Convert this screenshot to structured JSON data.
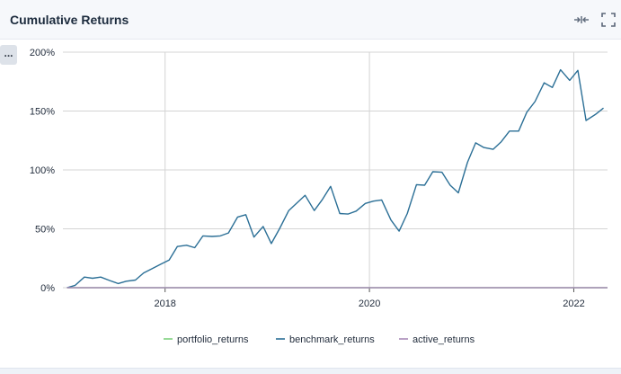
{
  "panel": {
    "title": "Cumulative Returns",
    "more_label": "...",
    "icons": [
      "collapse-arrows-icon",
      "fullscreen-icon"
    ]
  },
  "colors": {
    "portfolio": "#7fd17f",
    "benchmark": "#2b6f96",
    "active": "#a88ab8",
    "grid": "#d4d4d4"
  },
  "chart_data": {
    "type": "line",
    "title": "Cumulative Returns",
    "xlabel": "",
    "ylabel": "",
    "ylim": [
      0,
      200
    ],
    "yticks": [
      {
        "value": 0,
        "label": "0%"
      },
      {
        "value": 50,
        "label": "50%"
      },
      {
        "value": 100,
        "label": "100%"
      },
      {
        "value": 150,
        "label": "150%"
      },
      {
        "value": 200,
        "label": "200%"
      }
    ],
    "xlim": [
      2017.0,
      2022.33
    ],
    "xticks": [
      {
        "value": 2018,
        "label": "2018"
      },
      {
        "value": 2020,
        "label": "2020"
      },
      {
        "value": 2022,
        "label": "2022"
      }
    ],
    "grid": true,
    "legend": "bottom",
    "series": [
      {
        "name": "portfolio_returns",
        "color_key": "portfolio",
        "points": [
          [
            2017.04,
            0
          ],
          [
            2022.33,
            0
          ]
        ]
      },
      {
        "name": "benchmark_returns",
        "color_key": "benchmark",
        "points": [
          [
            2017.04,
            0
          ],
          [
            2017.12,
            2
          ],
          [
            2017.21,
            9
          ],
          [
            2017.29,
            8
          ],
          [
            2017.37,
            9
          ],
          [
            2017.46,
            6
          ],
          [
            2017.54,
            3.5
          ],
          [
            2017.62,
            5.5
          ],
          [
            2017.71,
            6.5
          ],
          [
            2017.79,
            12.5
          ],
          [
            2017.87,
            16
          ],
          [
            2017.96,
            20
          ],
          [
            2018.04,
            23.5
          ],
          [
            2018.12,
            35
          ],
          [
            2018.21,
            36
          ],
          [
            2018.29,
            34
          ],
          [
            2018.37,
            44
          ],
          [
            2018.46,
            43.5
          ],
          [
            2018.54,
            44
          ],
          [
            2018.62,
            46.5
          ],
          [
            2018.71,
            60
          ],
          [
            2018.79,
            62
          ],
          [
            2018.87,
            43
          ],
          [
            2018.96,
            52
          ],
          [
            2019.04,
            37.5
          ],
          [
            2019.12,
            50
          ],
          [
            2019.21,
            65.5
          ],
          [
            2019.29,
            72
          ],
          [
            2019.37,
            78.5
          ],
          [
            2019.46,
            65.5
          ],
          [
            2019.54,
            75
          ],
          [
            2019.62,
            86
          ],
          [
            2019.71,
            63
          ],
          [
            2019.79,
            62.5
          ],
          [
            2019.87,
            65
          ],
          [
            2019.96,
            71.5
          ],
          [
            2020.04,
            73.5
          ],
          [
            2020.12,
            74.5
          ],
          [
            2020.21,
            57.5
          ],
          [
            2020.29,
            48
          ],
          [
            2020.37,
            63
          ],
          [
            2020.46,
            87.5
          ],
          [
            2020.54,
            87
          ],
          [
            2020.62,
            98.5
          ],
          [
            2020.71,
            98
          ],
          [
            2020.79,
            87
          ],
          [
            2020.87,
            80.5
          ],
          [
            2020.96,
            106.5
          ],
          [
            2021.04,
            123
          ],
          [
            2021.12,
            119
          ],
          [
            2021.21,
            117.5
          ],
          [
            2021.29,
            124
          ],
          [
            2021.37,
            133
          ],
          [
            2021.46,
            133
          ],
          [
            2021.54,
            149
          ],
          [
            2021.62,
            158
          ],
          [
            2021.71,
            174
          ],
          [
            2021.79,
            170
          ],
          [
            2021.87,
            185
          ],
          [
            2021.96,
            176
          ],
          [
            2022.04,
            184.5
          ],
          [
            2022.12,
            142
          ],
          [
            2022.21,
            147
          ],
          [
            2022.29,
            152.5
          ]
        ]
      },
      {
        "name": "active_returns",
        "color_key": "active",
        "points": [
          [
            2017.04,
            0
          ],
          [
            2022.33,
            0
          ]
        ]
      }
    ]
  }
}
